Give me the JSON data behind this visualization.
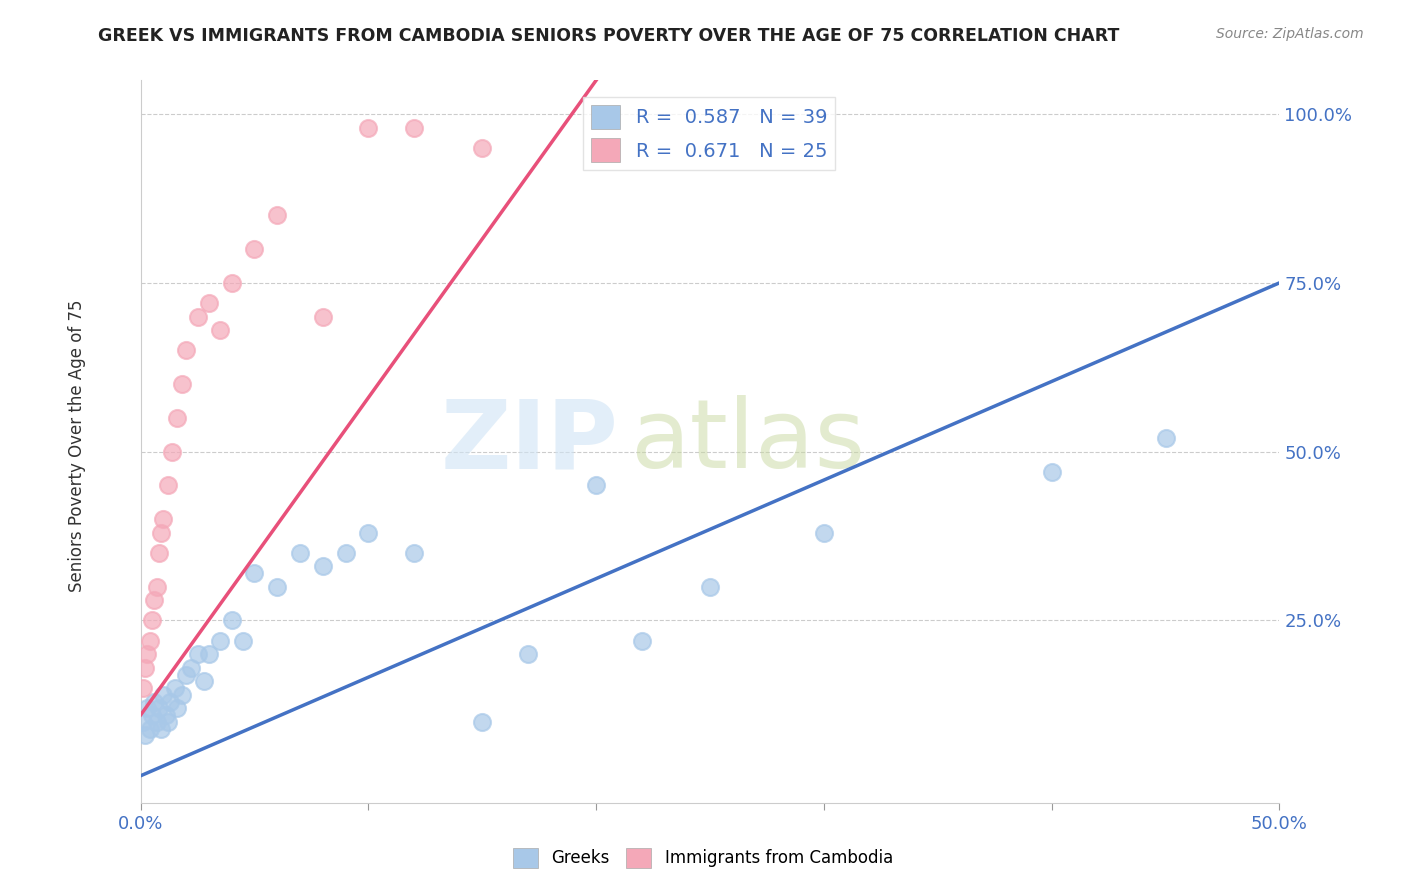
{
  "title": "GREEK VS IMMIGRANTS FROM CAMBODIA SENIORS POVERTY OVER THE AGE OF 75 CORRELATION CHART",
  "source": "Source: ZipAtlas.com",
  "ylabel": "Seniors Poverty Over the Age of 75",
  "xlim": [
    0,
    0.5
  ],
  "ylim": [
    -0.05,
    1.05
  ],
  "watermark_line1": "ZIP",
  "watermark_line2": "atlas",
  "greek_R": 0.587,
  "greek_N": 39,
  "cambodia_R": 0.671,
  "cambodia_N": 25,
  "greek_color": "#a8c8e8",
  "cambodia_color": "#f4a8b8",
  "greek_line_color": "#4472c4",
  "cambodia_line_color": "#e8507a",
  "legend_greek_label": "R =  0.587   N = 39",
  "legend_cambodia_label": "R =  0.671   N = 25",
  "legend_bottom_greek": "Greeks",
  "legend_bottom_cambodia": "Immigrants from Cambodia",
  "greek_x": [
    0.001,
    0.002,
    0.003,
    0.004,
    0.005,
    0.006,
    0.007,
    0.008,
    0.009,
    0.01,
    0.011,
    0.012,
    0.013,
    0.015,
    0.016,
    0.018,
    0.02,
    0.022,
    0.025,
    0.028,
    0.03,
    0.035,
    0.04,
    0.045,
    0.05,
    0.06,
    0.07,
    0.08,
    0.09,
    0.1,
    0.12,
    0.15,
    0.17,
    0.2,
    0.22,
    0.25,
    0.3,
    0.4,
    0.45
  ],
  "greek_y": [
    0.1,
    0.08,
    0.12,
    0.09,
    0.11,
    0.13,
    0.1,
    0.12,
    0.09,
    0.14,
    0.11,
    0.1,
    0.13,
    0.15,
    0.12,
    0.14,
    0.17,
    0.18,
    0.2,
    0.16,
    0.2,
    0.22,
    0.25,
    0.22,
    0.32,
    0.3,
    0.35,
    0.33,
    0.35,
    0.38,
    0.35,
    0.1,
    0.2,
    0.45,
    0.22,
    0.3,
    0.38,
    0.47,
    0.52
  ],
  "cambodia_x": [
    0.001,
    0.002,
    0.003,
    0.004,
    0.005,
    0.006,
    0.007,
    0.008,
    0.009,
    0.01,
    0.012,
    0.014,
    0.016,
    0.018,
    0.02,
    0.025,
    0.03,
    0.035,
    0.04,
    0.05,
    0.06,
    0.08,
    0.1,
    0.12,
    0.15
  ],
  "cambodia_y": [
    0.15,
    0.18,
    0.2,
    0.22,
    0.25,
    0.28,
    0.3,
    0.35,
    0.38,
    0.4,
    0.45,
    0.5,
    0.55,
    0.6,
    0.65,
    0.7,
    0.72,
    0.68,
    0.75,
    0.8,
    0.85,
    0.7,
    0.98,
    0.98,
    0.95
  ],
  "greek_line_x": [
    0.0,
    0.5
  ],
  "greek_line_y": [
    0.02,
    0.75
  ],
  "cambodia_line_x": [
    0.0,
    0.2
  ],
  "cambodia_line_y": [
    0.11,
    1.05
  ]
}
